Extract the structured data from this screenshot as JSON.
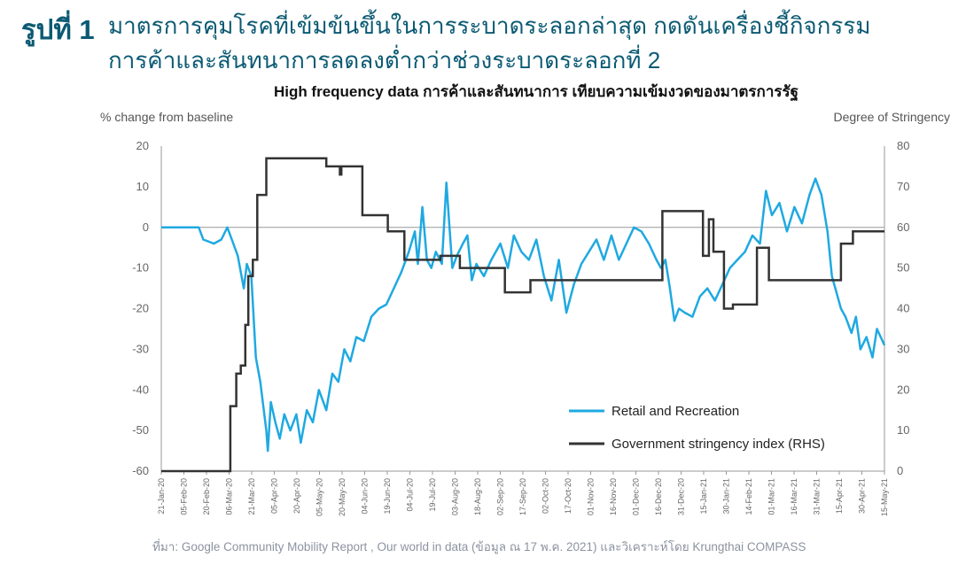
{
  "header": {
    "figure_label": "รูปที่ 1",
    "title_line1": "มาตรการคุมโรคที่เข้มข้นขึ้นในการระบาดระลอกล่าสุด กดดันเครื่องชี้กิจกรรม",
    "title_line2": "การค้าและสันทนาการลดลงต่ำกว่าช่วงระบาดระลอกที่ 2"
  },
  "source_note": "ที่มา: Google Community  Mobility Report , Our world in data (ข้อมูล ณ 17 พ.ค. 2021) และวิเคราะห์โดย Krungthai COMPASS",
  "chart_data": {
    "type": "line",
    "title": "High frequency data การค้าและสันทนาการ เทียบความเข้มงวดของมาตรการรัฐ",
    "ylabel_left": "% change from baseline",
    "ylabel_right": "Degree of Stringency",
    "ylim_left": [
      -60,
      20
    ],
    "ylim_right": [
      0,
      80
    ],
    "y_ticks_left": [
      "20",
      "10",
      "0",
      "-10",
      "-20",
      "-30",
      "-40",
      "-50",
      "-60"
    ],
    "y_ticks_right": [
      "80",
      "70",
      "60",
      "50",
      "40",
      "30",
      "20",
      "10",
      "0"
    ],
    "x_tick_labels": [
      "21-Jan-20",
      "05-Feb-20",
      "20-Feb-20",
      "06-Mar-20",
      "21-Mar-20",
      "05-Apr-20",
      "20-Apr-20",
      "05-May-20",
      "20-May-20",
      "04-Jun-20",
      "19-Jun-20",
      "04-Jul-20",
      "19-Jul-20",
      "03-Aug-20",
      "18-Aug-20",
      "02-Sep-20",
      "17-Sep-20",
      "02-Oct-20",
      "17-Oct-20",
      "01-Nov-20",
      "16-Nov-20",
      "01-Dec-20",
      "16-Dec-20",
      "31-Dec-20",
      "15-Jan-21",
      "30-Jan-21",
      "14-Feb-21",
      "01-Mar-21",
      "16-Mar-21",
      "31-Mar-21",
      "15-Apr-21",
      "30-Apr-21",
      "15-May-21"
    ],
    "x_start": "2020-01-21",
    "x_end": "2021-05-17",
    "zero_line": true,
    "legend_position": "bottom-right",
    "series": [
      {
        "name": "Retail and Recreation",
        "axis": "left",
        "color": "#1fa9e1",
        "points": [
          [
            "2020-01-21",
            0
          ],
          [
            "2020-02-05",
            0
          ],
          [
            "2020-02-15",
            0
          ],
          [
            "2020-02-18",
            -3
          ],
          [
            "2020-02-25",
            -4
          ],
          [
            "2020-03-01",
            -3
          ],
          [
            "2020-03-05",
            0
          ],
          [
            "2020-03-08",
            -3
          ],
          [
            "2020-03-12",
            -7
          ],
          [
            "2020-03-16",
            -15
          ],
          [
            "2020-03-18",
            -9
          ],
          [
            "2020-03-21",
            -12
          ],
          [
            "2020-03-24",
            -32
          ],
          [
            "2020-03-27",
            -38
          ],
          [
            "2020-03-31",
            -50
          ],
          [
            "2020-04-01",
            -55
          ],
          [
            "2020-04-03",
            -43
          ],
          [
            "2020-04-06",
            -48
          ],
          [
            "2020-04-09",
            -52
          ],
          [
            "2020-04-12",
            -46
          ],
          [
            "2020-04-16",
            -50
          ],
          [
            "2020-04-20",
            -46
          ],
          [
            "2020-04-23",
            -53
          ],
          [
            "2020-04-27",
            -45
          ],
          [
            "2020-05-01",
            -48
          ],
          [
            "2020-05-05",
            -40
          ],
          [
            "2020-05-10",
            -45
          ],
          [
            "2020-05-14",
            -36
          ],
          [
            "2020-05-18",
            -38
          ],
          [
            "2020-05-22",
            -30
          ],
          [
            "2020-05-26",
            -33
          ],
          [
            "2020-05-30",
            -27
          ],
          [
            "2020-06-04",
            -28
          ],
          [
            "2020-06-09",
            -22
          ],
          [
            "2020-06-14",
            -20
          ],
          [
            "2020-06-19",
            -19
          ],
          [
            "2020-06-24",
            -15
          ],
          [
            "2020-06-29",
            -11
          ],
          [
            "2020-07-04",
            -6
          ],
          [
            "2020-07-08",
            -1
          ],
          [
            "2020-07-10",
            -9
          ],
          [
            "2020-07-13",
            5
          ],
          [
            "2020-07-16",
            -8
          ],
          [
            "2020-07-19",
            -10
          ],
          [
            "2020-07-22",
            -6
          ],
          [
            "2020-07-26",
            -9
          ],
          [
            "2020-07-29",
            11
          ],
          [
            "2020-08-02",
            -10
          ],
          [
            "2020-08-05",
            -7
          ],
          [
            "2020-08-09",
            -4
          ],
          [
            "2020-08-12",
            -2
          ],
          [
            "2020-08-15",
            -13
          ],
          [
            "2020-08-18",
            -9
          ],
          [
            "2020-08-23",
            -12
          ],
          [
            "2020-08-28",
            -8
          ],
          [
            "2020-09-03",
            -4
          ],
          [
            "2020-09-08",
            -10
          ],
          [
            "2020-09-12",
            -2
          ],
          [
            "2020-09-17",
            -6
          ],
          [
            "2020-09-22",
            -8
          ],
          [
            "2020-09-27",
            -3
          ],
          [
            "2020-10-02",
            -12
          ],
          [
            "2020-10-07",
            -18
          ],
          [
            "2020-10-12",
            -8
          ],
          [
            "2020-10-17",
            -21
          ],
          [
            "2020-10-22",
            -14
          ],
          [
            "2020-10-27",
            -9
          ],
          [
            "2020-11-01",
            -6
          ],
          [
            "2020-11-06",
            -3
          ],
          [
            "2020-11-11",
            -8
          ],
          [
            "2020-11-16",
            -2
          ],
          [
            "2020-11-21",
            -8
          ],
          [
            "2020-11-26",
            -4
          ],
          [
            "2020-12-01",
            0
          ],
          [
            "2020-12-06",
            -1
          ],
          [
            "2020-12-11",
            -4
          ],
          [
            "2020-12-16",
            -8
          ],
          [
            "2020-12-19",
            -10
          ],
          [
            "2020-12-22",
            -8
          ],
          [
            "2020-12-25",
            -15
          ],
          [
            "2020-12-28",
            -23
          ],
          [
            "2020-12-31",
            -20
          ],
          [
            "2021-01-04",
            -21
          ],
          [
            "2021-01-09",
            -22
          ],
          [
            "2021-01-14",
            -17
          ],
          [
            "2021-01-19",
            -15
          ],
          [
            "2021-01-24",
            -18
          ],
          [
            "2021-01-29",
            -14
          ],
          [
            "2021-02-03",
            -10
          ],
          [
            "2021-02-08",
            -8
          ],
          [
            "2021-02-13",
            -6
          ],
          [
            "2021-02-18",
            -2
          ],
          [
            "2021-02-23",
            -4
          ],
          [
            "2021-02-27",
            9
          ],
          [
            "2021-03-03",
            3
          ],
          [
            "2021-03-08",
            6
          ],
          [
            "2021-03-13",
            -1
          ],
          [
            "2021-03-18",
            5
          ],
          [
            "2021-03-23",
            1
          ],
          [
            "2021-03-28",
            8
          ],
          [
            "2021-04-01",
            12
          ],
          [
            "2021-04-05",
            8
          ],
          [
            "2021-04-09",
            -1
          ],
          [
            "2021-04-12",
            -12
          ],
          [
            "2021-04-15",
            -16
          ],
          [
            "2021-04-18",
            -20
          ],
          [
            "2021-04-21",
            -22
          ],
          [
            "2021-04-25",
            -26
          ],
          [
            "2021-04-28",
            -22
          ],
          [
            "2021-05-01",
            -30
          ],
          [
            "2021-05-05",
            -27
          ],
          [
            "2021-05-09",
            -32
          ],
          [
            "2021-05-12",
            -25
          ],
          [
            "2021-05-17",
            -29
          ]
        ]
      },
      {
        "name": "Government stringency index (RHS)",
        "axis": "right",
        "color": "#333333",
        "steps": [
          [
            "2020-01-21",
            0
          ],
          [
            "2020-03-07",
            16
          ],
          [
            "2020-03-11",
            24
          ],
          [
            "2020-03-14",
            26
          ],
          [
            "2020-03-17",
            36
          ],
          [
            "2020-03-19",
            48
          ],
          [
            "2020-03-22",
            52
          ],
          [
            "2020-03-25",
            68
          ],
          [
            "2020-03-31",
            77
          ],
          [
            "2020-05-10",
            75
          ],
          [
            "2020-05-19",
            73
          ],
          [
            "2020-05-20",
            75
          ],
          [
            "2020-06-03",
            63
          ],
          [
            "2020-06-20",
            59
          ],
          [
            "2020-07-01",
            52
          ],
          [
            "2020-07-25",
            53
          ],
          [
            "2020-08-07",
            50
          ],
          [
            "2020-09-06",
            44
          ],
          [
            "2020-09-23",
            47
          ],
          [
            "2020-12-20",
            64
          ],
          [
            "2021-01-16",
            53
          ],
          [
            "2021-01-20",
            62
          ],
          [
            "2021-01-23",
            54
          ],
          [
            "2021-01-30",
            40
          ],
          [
            "2021-02-05",
            41
          ],
          [
            "2021-02-21",
            55
          ],
          [
            "2021-03-01",
            47
          ],
          [
            "2021-04-18",
            56
          ],
          [
            "2021-04-26",
            59
          ],
          [
            "2021-05-17",
            59
          ]
        ]
      }
    ]
  }
}
